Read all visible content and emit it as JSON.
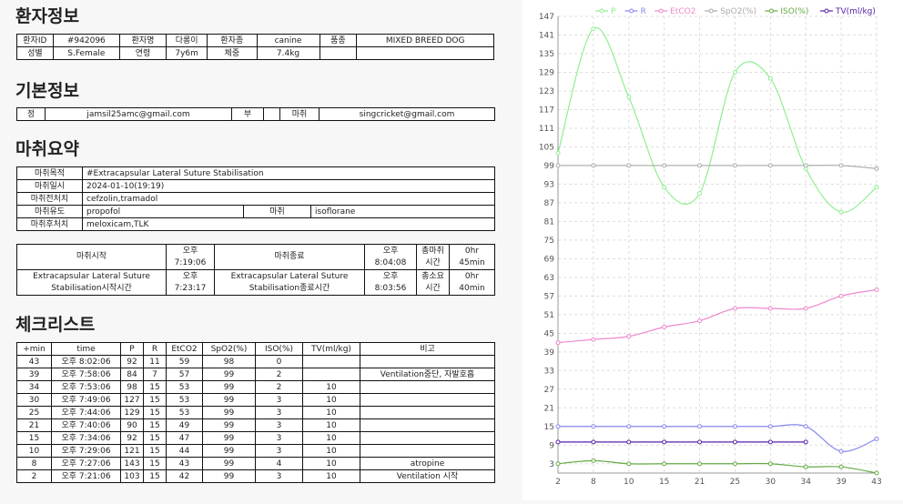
{
  "sections": {
    "patient": "환자정보",
    "basic": "기본정보",
    "anesthesia": "마취요약",
    "checklist": "체크리스트"
  },
  "patient": {
    "row1": [
      "환자ID",
      "#942096",
      "환자명",
      "다롱이",
      "환자종",
      "canine",
      "품종",
      "MIXED BREED DOG"
    ],
    "row2": [
      "성별",
      "S.Female",
      "연령",
      "7y6m",
      "체중",
      "7.4kg",
      "",
      ""
    ]
  },
  "basic": {
    "row": [
      "정",
      "jamsil25amc@gmail.com",
      "부",
      "",
      "마취",
      "singcricket@gmail.com"
    ]
  },
  "summary": {
    "purpose_label": "마취목적",
    "purpose": "#Extracapsular Lateral Suture Stabilisation",
    "date_label": "마취일시",
    "date": "2024-01-10(19:19)",
    "pre_label": "마취전처치",
    "pre": "cefzolin,tramadol",
    "induction_label": "마취유도",
    "induction": "propofol",
    "maint_label": "마취",
    "maint": "isoflorane",
    "post_label": "마취후처치",
    "post": "meloxicam,TLK"
  },
  "times": {
    "start_label": "마취시작",
    "start_ampm": "오후",
    "start_time": "7:19:06",
    "end_label": "마취종료",
    "end_ampm": "오후",
    "end_time": "8:04:08",
    "total_anes_l1": "총마취",
    "total_anes_l2": "시간",
    "total_anes_v1": "0hr",
    "total_anes_v2": "45min",
    "surg_start_l1": "Extracapsular Lateral Suture",
    "surg_start_l2": "Stabilisation시작시간",
    "surg_start_ampm": "오후",
    "surg_start_time": "7:23:17",
    "surg_end_l1": "Extracapsular Lateral Suture",
    "surg_end_l2": "Stabilisation종료시간",
    "surg_end_ampm": "오후",
    "surg_end_time": "8:03:56",
    "total_surg_l1": "총소요",
    "total_surg_l2": "시간",
    "total_surg_v1": "0hr",
    "total_surg_v2": "40min"
  },
  "checklist": {
    "headers": [
      "+min",
      "time",
      "P",
      "R",
      "EtCO2",
      "SpO2(%)",
      "ISO(%)",
      "TV(ml/kg)",
      "비고"
    ],
    "rows": [
      [
        "43",
        "오후 8:02:06",
        "92",
        "11",
        "59",
        "98",
        "0",
        "",
        ""
      ],
      [
        "39",
        "오후 7:58:06",
        "84",
        "7",
        "57",
        "99",
        "2",
        "",
        "Ventilation중단, 자발호흡"
      ],
      [
        "34",
        "오후 7:53:06",
        "98",
        "15",
        "53",
        "99",
        "2",
        "10",
        ""
      ],
      [
        "30",
        "오후 7:49:06",
        "127",
        "15",
        "53",
        "99",
        "3",
        "10",
        ""
      ],
      [
        "25",
        "오후 7:44:06",
        "129",
        "15",
        "53",
        "99",
        "3",
        "10",
        ""
      ],
      [
        "21",
        "오후 7:40:06",
        "90",
        "15",
        "49",
        "99",
        "3",
        "10",
        ""
      ],
      [
        "15",
        "오후 7:34:06",
        "92",
        "15",
        "47",
        "99",
        "3",
        "10",
        ""
      ],
      [
        "10",
        "오후 7:29:06",
        "121",
        "15",
        "44",
        "99",
        "3",
        "10",
        ""
      ],
      [
        "8",
        "오후 7:27:06",
        "143",
        "15",
        "43",
        "99",
        "4",
        "10",
        "atropine"
      ],
      [
        "2",
        "오후 7:21:06",
        "103",
        "15",
        "42",
        "99",
        "3",
        "10",
        "Ventilation 시작"
      ]
    ]
  },
  "chart_data": {
    "type": "line",
    "x": [
      2,
      8,
      10,
      15,
      21,
      25,
      30,
      34,
      39,
      43
    ],
    "ylim": [
      0,
      147
    ],
    "yticks": [
      3,
      9,
      15,
      21,
      27,
      33,
      39,
      45,
      51,
      57,
      63,
      69,
      75,
      81,
      87,
      93,
      99,
      105,
      111,
      117,
      123,
      129,
      135,
      141,
      147
    ],
    "grid": true,
    "legend": "top",
    "series": [
      {
        "name": "P",
        "color": "#90ee90",
        "values": [
          103,
          143,
          121,
          92,
          90,
          129,
          127,
          98,
          84,
          92
        ]
      },
      {
        "name": "R",
        "color": "#8888ee",
        "values": [
          15,
          15,
          15,
          15,
          15,
          15,
          15,
          15,
          7,
          11
        ]
      },
      {
        "name": "EtCO2",
        "color": "#ee88cc",
        "values": [
          42,
          43,
          44,
          47,
          49,
          53,
          53,
          53,
          57,
          59
        ]
      },
      {
        "name": "SpO2(%)",
        "color": "#aaaaaa",
        "values": [
          99,
          99,
          99,
          99,
          99,
          99,
          99,
          99,
          99,
          98
        ]
      },
      {
        "name": "ISO(%)",
        "color": "#66aa44",
        "values": [
          3,
          4,
          3,
          3,
          3,
          3,
          3,
          2,
          2,
          0
        ]
      },
      {
        "name": "TV(ml/kg)",
        "color": "#5522aa",
        "values": [
          10,
          10,
          10,
          10,
          10,
          10,
          10,
          10,
          null,
          null
        ]
      }
    ]
  }
}
